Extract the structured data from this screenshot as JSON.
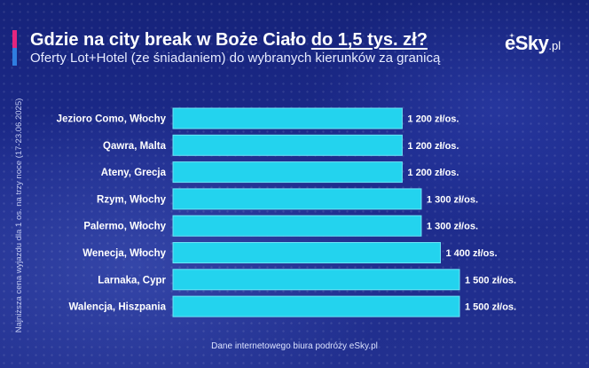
{
  "header": {
    "title_main": "Gdzie na city break w Boże Ciało ",
    "title_highlight": "do 1,5 tys. zł?",
    "subtitle": "Oferty Lot+Hotel (ze śniadaniem) do wybranych kierunków za granicą"
  },
  "logo": {
    "brand": "eSky",
    "suffix": ".pl"
  },
  "side_note": "Najniższa cena wyjazdu dla 1 os. na trzy noce (17-23.06.2025)",
  "footer": {
    "source": "Dane internetowego biura podróży eSky.pl"
  },
  "colors": {
    "bar": "#23d3ee",
    "bar_border": "#6be6f7",
    "text": "#ffffff",
    "accent_pink": "#e5257f",
    "accent_blue": "#2f7de0"
  },
  "chart_data": {
    "type": "bar",
    "orientation": "horizontal",
    "categories": [
      "Jezioro Como, Włochy",
      "Qawra, Malta",
      "Ateny, Grecja",
      "Rzym, Włochy",
      "Palermo, Włochy",
      "Wenecja, Włochy",
      "Larnaka, Cypr",
      "Walencja, Hiszpania"
    ],
    "values": [
      1200,
      1200,
      1200,
      1300,
      1300,
      1400,
      1500,
      1500
    ],
    "value_labels": [
      "1 200 zł/os.",
      "1 200 zł/os.",
      "1 200 zł/os.",
      "1 300 zł/os.",
      "1 300 zł/os.",
      "1 400 zł/os.",
      "1 500 zł/os.",
      "1 500 zł/os."
    ],
    "unit": "zł/os.",
    "xlim": [
      0,
      1500
    ],
    "grid": false,
    "legend": "none"
  }
}
